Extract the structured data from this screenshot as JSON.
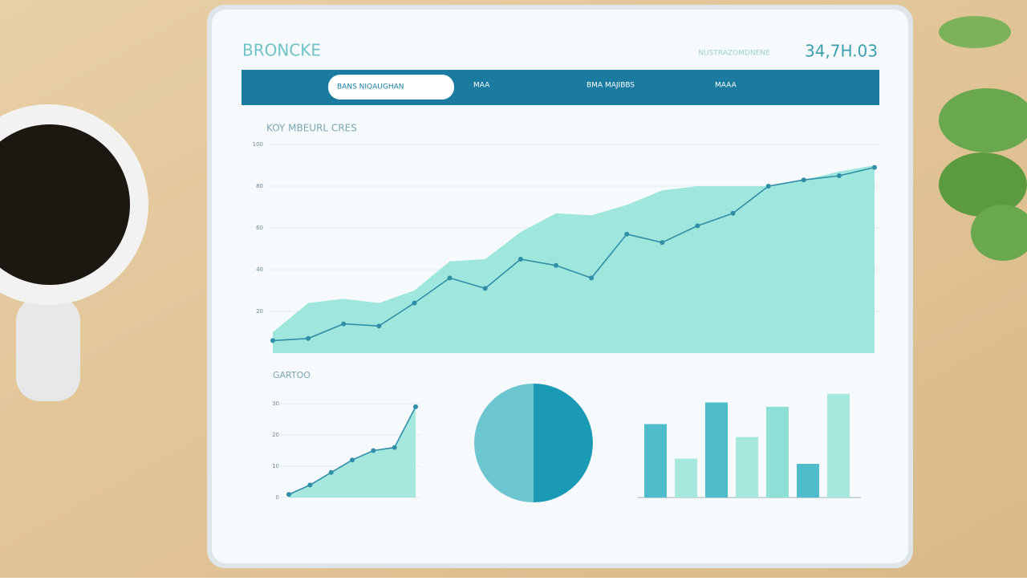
{
  "header": {
    "title": "BRONCKE",
    "subtitle": "NUSTRAZOMDNENE",
    "value": "34,7H.03"
  },
  "nav": {
    "items": [
      "BANS NIQAUGHAN",
      "MAA",
      "BMA MAJIBBS",
      "MAAA"
    ]
  },
  "main_chart": {
    "title": "KOY MBEURL CRES",
    "chart_data": {
      "type": "line",
      "categories": [
        null,
        null,
        null,
        null,
        null,
        null,
        null,
        null,
        null,
        null,
        null,
        null,
        null,
        null,
        null,
        null,
        null,
        null
      ],
      "ylim": [
        0,
        100
      ],
      "yticks": [
        20,
        40,
        60,
        80,
        100
      ],
      "series": [
        {
          "color": "#9fe6dc",
          "fill": true,
          "values": [
            10,
            24,
            26,
            24,
            30,
            44,
            45,
            58,
            67,
            66,
            71,
            78,
            80,
            80,
            80,
            83,
            87,
            90
          ]
        },
        {
          "color": "#2f8fa8",
          "values": [
            6,
            7,
            14,
            13,
            24,
            36,
            31,
            45,
            42,
            36,
            57,
            53,
            61,
            67,
            80,
            83,
            85,
            89
          ]
        }
      ]
    }
  },
  "section_title": "GARTOO",
  "small_line": {
    "chart_data": {
      "type": "line",
      "categories": [
        null,
        null,
        null,
        null,
        null,
        null,
        null
      ],
      "ylim": [
        0,
        30
      ],
      "yticks": [
        0,
        10,
        20,
        30
      ],
      "series": [
        {
          "color": "#2f8fa8",
          "fill": true,
          "fill_color": "#a6e8de",
          "values": [
            1,
            4,
            8,
            12,
            15,
            16,
            29
          ]
        }
      ]
    }
  },
  "pie": {
    "chart_data": {
      "type": "pie",
      "values": [
        50,
        50
      ],
      "colors": [
        "#6cc5cf",
        "#1a9ab5"
      ]
    }
  },
  "bars": {
    "chart_data": {
      "type": "bar",
      "ylim": [
        0,
        130
      ],
      "categories": [
        null,
        null,
        null,
        null,
        null,
        null,
        null
      ],
      "values": [
        85,
        45,
        110,
        70,
        105,
        39,
        120
      ],
      "colors": [
        "#4fbccb",
        "#a6e8de",
        "#4fbccb",
        "#a6e8de",
        "#8ee0d6",
        "#4fbccb",
        "#a6e8de"
      ]
    }
  }
}
